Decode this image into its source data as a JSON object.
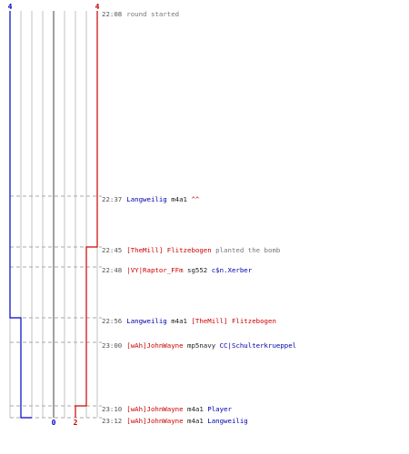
{
  "chart_data": {
    "type": "step-timeline",
    "counts_top": {
      "ct": "4",
      "t": "4"
    },
    "counts_bottom": {
      "ct": "0",
      "t": "2"
    },
    "colors": {
      "ct": "#0000cc",
      "t": "#cc0000",
      "grid": "#c0c0c0",
      "center": "#404040",
      "dash": "#aaaaaa"
    },
    "ct_alive": [
      4,
      4,
      4,
      4,
      3,
      3,
      3,
      2,
      1,
      0
    ],
    "t_alive": [
      4,
      4,
      3,
      3,
      3,
      3,
      2,
      2,
      2,
      2
    ]
  },
  "events": [
    {
      "time": "22:08",
      "parts": [
        {
          "text": "round started",
          "role": "msg"
        }
      ]
    },
    {
      "time": "22:37",
      "parts": [
        {
          "text": "Langweilig",
          "role": "ct"
        },
        {
          "text": " m4a1 ",
          "role": "wpn"
        },
        {
          "text": "^^",
          "role": "t"
        }
      ]
    },
    {
      "time": "22:45",
      "parts": [
        {
          "text": "[TheMill] Flitzebogen",
          "role": "t"
        },
        {
          "text": " planted the bomb",
          "role": "msg"
        }
      ]
    },
    {
      "time": "22:48",
      "parts": [
        {
          "text": "|VY|Raptor_FFm",
          "role": "t"
        },
        {
          "text": " sg552 ",
          "role": "wpn"
        },
        {
          "text": "c$n.Xerber",
          "role": "ct"
        }
      ]
    },
    {
      "time": "22:56",
      "parts": [
        {
          "text": "Langweilig",
          "role": "ct"
        },
        {
          "text": " m4a1 ",
          "role": "wpn"
        },
        {
          "text": "[TheMill] Flitzebogen",
          "role": "t"
        }
      ]
    },
    {
      "time": "23:00",
      "parts": [
        {
          "text": "[wAh]JohnWayne",
          "role": "t"
        },
        {
          "text": " mp5navy ",
          "role": "wpn"
        },
        {
          "text": "CC|Schulterkrueppel",
          "role": "ct"
        }
      ]
    },
    {
      "time": "23:10",
      "parts": [
        {
          "text": "[wAh]JohnWayne",
          "role": "t"
        },
        {
          "text": " m4a1 ",
          "role": "wpn"
        },
        {
          "text": "Player",
          "role": "ct"
        }
      ]
    },
    {
      "time": "23:12",
      "parts": [
        {
          "text": "[wAh]JohnWayne",
          "role": "t"
        },
        {
          "text": " m4a1 ",
          "role": "wpn"
        },
        {
          "text": "Langweilig",
          "role": "ct"
        }
      ]
    }
  ]
}
